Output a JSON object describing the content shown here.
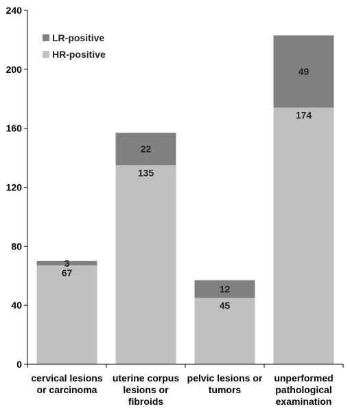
{
  "chart_data": {
    "type": "bar",
    "stacked": true,
    "categories": [
      [
        "cervical lesions",
        "or carcinoma"
      ],
      [
        "uterine corpus",
        "lesions or",
        "fibroids"
      ],
      [
        "pelvic lesions or",
        "tumors"
      ],
      [
        "unperformed",
        "pathological",
        "examination"
      ]
    ],
    "series": [
      {
        "name": "HR-positive",
        "values": [
          67,
          135,
          45,
          174
        ],
        "color": "#c0c0c0"
      },
      {
        "name": "LR-positive",
        "values": [
          3,
          22,
          12,
          49
        ],
        "color": "#808080"
      }
    ],
    "ylim": [
      0,
      240
    ],
    "yticks": [
      0,
      40,
      80,
      120,
      160,
      200,
      240
    ],
    "title": "",
    "xlabel": "",
    "ylabel": "",
    "legend_position": "top-left",
    "grid": false,
    "data_labels": true
  }
}
